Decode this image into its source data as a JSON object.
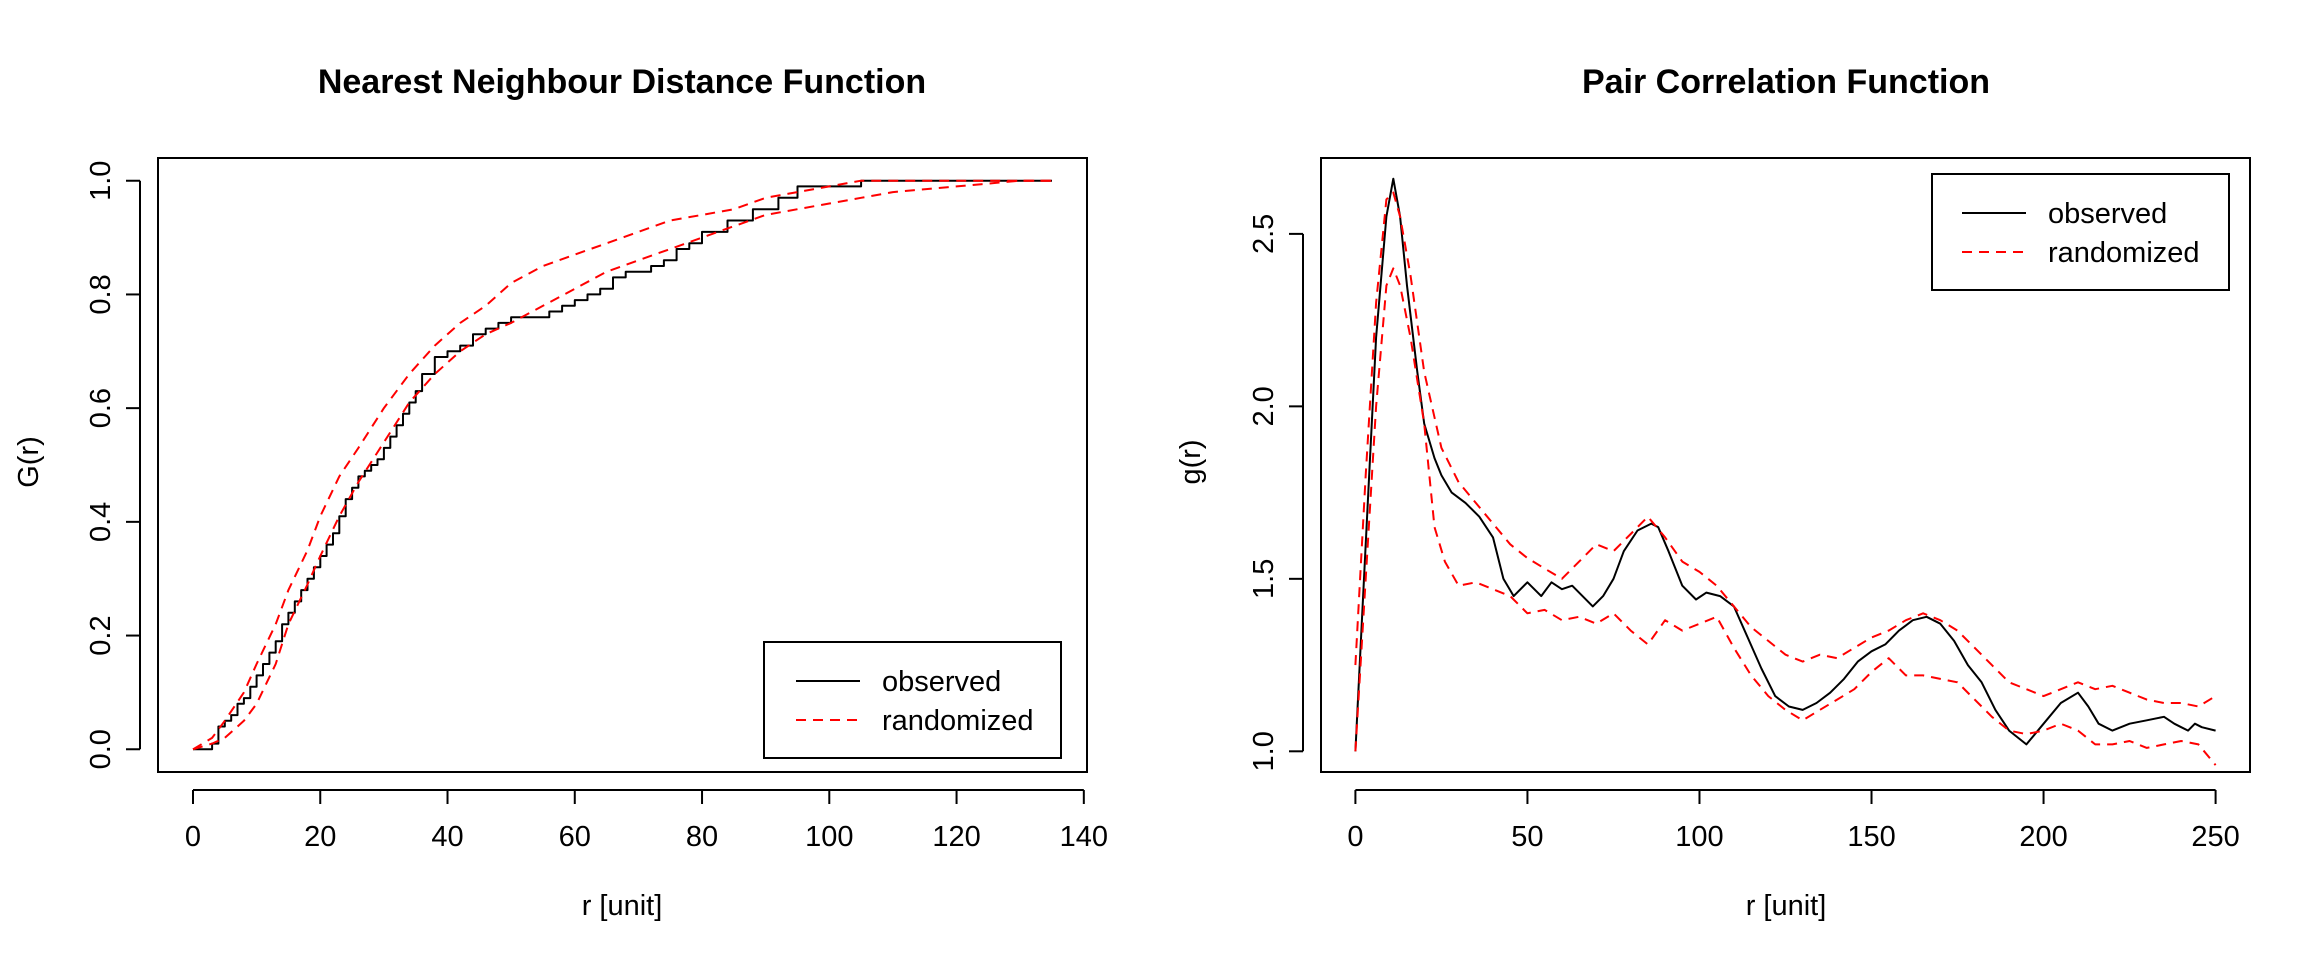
{
  "chart_data": [
    {
      "type": "line",
      "title": "Nearest Neighbour Distance Function",
      "xlabel": "r [unit]",
      "ylabel": "G(r)",
      "xlim": [
        0,
        140
      ],
      "ylim": [
        0,
        1
      ],
      "xticks": [
        "0",
        "20",
        "40",
        "60",
        "80",
        "100",
        "120",
        "140"
      ],
      "yticks": [
        "0.0",
        "0.2",
        "0.4",
        "0.6",
        "0.8",
        "1.0"
      ],
      "grid": false,
      "legend_position": "bottom-right",
      "legend": [
        "observed",
        "randomized"
      ],
      "series": [
        {
          "name": "observed",
          "color": "#000000",
          "style": "solid",
          "step": true,
          "x": [
            0,
            3,
            4,
            5,
            6,
            7,
            8,
            9,
            10,
            11,
            12,
            13,
            14,
            15,
            16,
            17,
            18,
            19,
            20,
            21,
            22,
            23,
            24,
            25,
            26,
            27,
            28,
            29,
            30,
            31,
            32,
            33,
            34,
            35,
            36,
            38,
            39,
            40,
            42,
            44,
            46,
            48,
            50,
            52,
            54,
            56,
            58,
            60,
            62,
            64,
            66,
            68,
            70,
            72,
            74,
            76,
            78,
            80,
            84,
            88,
            92,
            95,
            100,
            105,
            108,
            120,
            135
          ],
          "y": [
            0,
            0.01,
            0.04,
            0.05,
            0.06,
            0.08,
            0.09,
            0.11,
            0.13,
            0.15,
            0.17,
            0.19,
            0.22,
            0.24,
            0.26,
            0.28,
            0.3,
            0.32,
            0.34,
            0.36,
            0.38,
            0.41,
            0.44,
            0.46,
            0.48,
            0.49,
            0.5,
            0.51,
            0.53,
            0.55,
            0.57,
            0.59,
            0.61,
            0.63,
            0.66,
            0.69,
            0.69,
            0.7,
            0.71,
            0.73,
            0.74,
            0.75,
            0.76,
            0.76,
            0.76,
            0.77,
            0.78,
            0.79,
            0.8,
            0.81,
            0.83,
            0.84,
            0.84,
            0.85,
            0.86,
            0.88,
            0.89,
            0.91,
            0.93,
            0.95,
            0.97,
            0.99,
            0.99,
            1.0,
            1.0,
            1.0,
            1.0
          ]
        },
        {
          "name": "randomized",
          "color": "#ff0000",
          "style": "dashed",
          "step": false,
          "x": [
            0,
            3,
            5,
            8,
            10,
            13,
            15,
            18,
            20,
            23,
            26,
            30,
            34,
            38,
            42,
            46,
            50,
            55,
            60,
            65,
            70,
            75,
            80,
            85,
            90,
            95,
            100,
            105,
            110,
            120,
            130,
            135
          ],
          "y": [
            0,
            0.02,
            0.05,
            0.1,
            0.15,
            0.22,
            0.28,
            0.35,
            0.41,
            0.48,
            0.53,
            0.6,
            0.66,
            0.71,
            0.75,
            0.78,
            0.82,
            0.85,
            0.87,
            0.89,
            0.91,
            0.93,
            0.94,
            0.95,
            0.97,
            0.98,
            0.99,
            1.0,
            1.0,
            1.0,
            1.0,
            1.0
          ]
        },
        {
          "name": "randomized",
          "color": "#ff0000",
          "style": "dashed",
          "step": false,
          "x": [
            0,
            3,
            5,
            8,
            10,
            13,
            15,
            18,
            20,
            23,
            26,
            30,
            34,
            38,
            42,
            46,
            50,
            55,
            60,
            65,
            70,
            75,
            80,
            85,
            90,
            95,
            100,
            105,
            110,
            120,
            130,
            135
          ],
          "y": [
            0,
            0.01,
            0.02,
            0.05,
            0.08,
            0.15,
            0.22,
            0.29,
            0.34,
            0.41,
            0.47,
            0.54,
            0.61,
            0.66,
            0.7,
            0.73,
            0.75,
            0.78,
            0.81,
            0.84,
            0.86,
            0.88,
            0.9,
            0.92,
            0.94,
            0.95,
            0.96,
            0.97,
            0.98,
            0.99,
            1.0,
            1.0
          ]
        }
      ]
    },
    {
      "type": "line",
      "title": "Pair Correlation Function",
      "xlabel": "r [unit]",
      "ylabel": "g(r)",
      "xlim": [
        0,
        250
      ],
      "ylim": [
        1.0,
        2.65
      ],
      "xticks": [
        "0",
        "50",
        "100",
        "150",
        "200",
        "250"
      ],
      "yticks": [
        "1.0",
        "1.5",
        "2.0",
        "2.5"
      ],
      "grid": false,
      "legend_position": "top-right",
      "legend": [
        "observed",
        "randomized"
      ],
      "series": [
        {
          "name": "observed",
          "color": "#000000",
          "style": "solid",
          "x": [
            0,
            3,
            6,
            9,
            11,
            13,
            15,
            18,
            20,
            23,
            25,
            28,
            32,
            36,
            40,
            43,
            46,
            50,
            54,
            57,
            60,
            63,
            66,
            69,
            72,
            75,
            78,
            82,
            86,
            88,
            91,
            95,
            99,
            102,
            106,
            110,
            114,
            118,
            122,
            126,
            130,
            134,
            138,
            142,
            146,
            150,
            154,
            158,
            162,
            166,
            170,
            174,
            178,
            182,
            186,
            190,
            195,
            200,
            205,
            210,
            213,
            216,
            220,
            225,
            230,
            235,
            238,
            240,
            242,
            244,
            246,
            250
          ],
          "y": [
            1.0,
            1.6,
            2.2,
            2.55,
            2.66,
            2.55,
            2.35,
            2.1,
            1.95,
            1.85,
            1.8,
            1.75,
            1.72,
            1.68,
            1.62,
            1.5,
            1.45,
            1.49,
            1.45,
            1.49,
            1.47,
            1.48,
            1.45,
            1.42,
            1.45,
            1.5,
            1.58,
            1.64,
            1.66,
            1.65,
            1.58,
            1.48,
            1.44,
            1.46,
            1.45,
            1.42,
            1.33,
            1.24,
            1.16,
            1.13,
            1.12,
            1.14,
            1.17,
            1.21,
            1.26,
            1.29,
            1.31,
            1.35,
            1.38,
            1.39,
            1.37,
            1.32,
            1.25,
            1.2,
            1.12,
            1.06,
            1.02,
            1.08,
            1.14,
            1.17,
            1.13,
            1.08,
            1.06,
            1.08,
            1.09,
            1.1,
            1.08,
            1.07,
            1.06,
            1.08,
            1.07,
            1.06
          ]
        },
        {
          "name": "randomized",
          "color": "#ff0000",
          "style": "dashed",
          "x": [
            0,
            3,
            6,
            9,
            11,
            13,
            16,
            20,
            25,
            30,
            35,
            40,
            45,
            50,
            55,
            60,
            65,
            70,
            75,
            80,
            85,
            90,
            95,
            100,
            105,
            110,
            115,
            120,
            125,
            130,
            135,
            140,
            145,
            150,
            155,
            160,
            165,
            170,
            175,
            180,
            185,
            190,
            195,
            200,
            205,
            210,
            215,
            220,
            225,
            230,
            235,
            240,
            245,
            250
          ],
          "y": [
            1.25,
            1.8,
            2.3,
            2.6,
            2.62,
            2.55,
            2.38,
            2.1,
            1.88,
            1.78,
            1.72,
            1.66,
            1.6,
            1.56,
            1.53,
            1.5,
            1.55,
            1.6,
            1.58,
            1.63,
            1.68,
            1.62,
            1.55,
            1.52,
            1.48,
            1.42,
            1.36,
            1.32,
            1.28,
            1.26,
            1.28,
            1.27,
            1.3,
            1.33,
            1.35,
            1.38,
            1.4,
            1.38,
            1.35,
            1.3,
            1.25,
            1.2,
            1.18,
            1.16,
            1.18,
            1.2,
            1.18,
            1.19,
            1.17,
            1.15,
            1.14,
            1.14,
            1.13,
            1.16
          ]
        },
        {
          "name": "randomized",
          "color": "#ff0000",
          "style": "dashed",
          "x": [
            0,
            3,
            6,
            9,
            11,
            13,
            16,
            20,
            23,
            26,
            30,
            35,
            40,
            45,
            50,
            55,
            60,
            65,
            70,
            75,
            80,
            85,
            90,
            95,
            100,
            105,
            110,
            115,
            120,
            125,
            130,
            135,
            140,
            145,
            150,
            155,
            160,
            165,
            170,
            175,
            180,
            185,
            190,
            195,
            200,
            205,
            210,
            215,
            220,
            225,
            230,
            235,
            240,
            245,
            250
          ],
          "y": [
            1.0,
            1.5,
            2.0,
            2.35,
            2.4,
            2.35,
            2.2,
            1.95,
            1.65,
            1.55,
            1.48,
            1.49,
            1.47,
            1.45,
            1.4,
            1.41,
            1.38,
            1.39,
            1.37,
            1.4,
            1.35,
            1.31,
            1.38,
            1.35,
            1.37,
            1.39,
            1.3,
            1.22,
            1.16,
            1.12,
            1.09,
            1.12,
            1.15,
            1.18,
            1.23,
            1.27,
            1.22,
            1.22,
            1.21,
            1.2,
            1.15,
            1.1,
            1.06,
            1.05,
            1.06,
            1.08,
            1.06,
            1.02,
            1.02,
            1.03,
            1.01,
            1.02,
            1.03,
            1.02,
            0.96
          ]
        }
      ]
    }
  ]
}
